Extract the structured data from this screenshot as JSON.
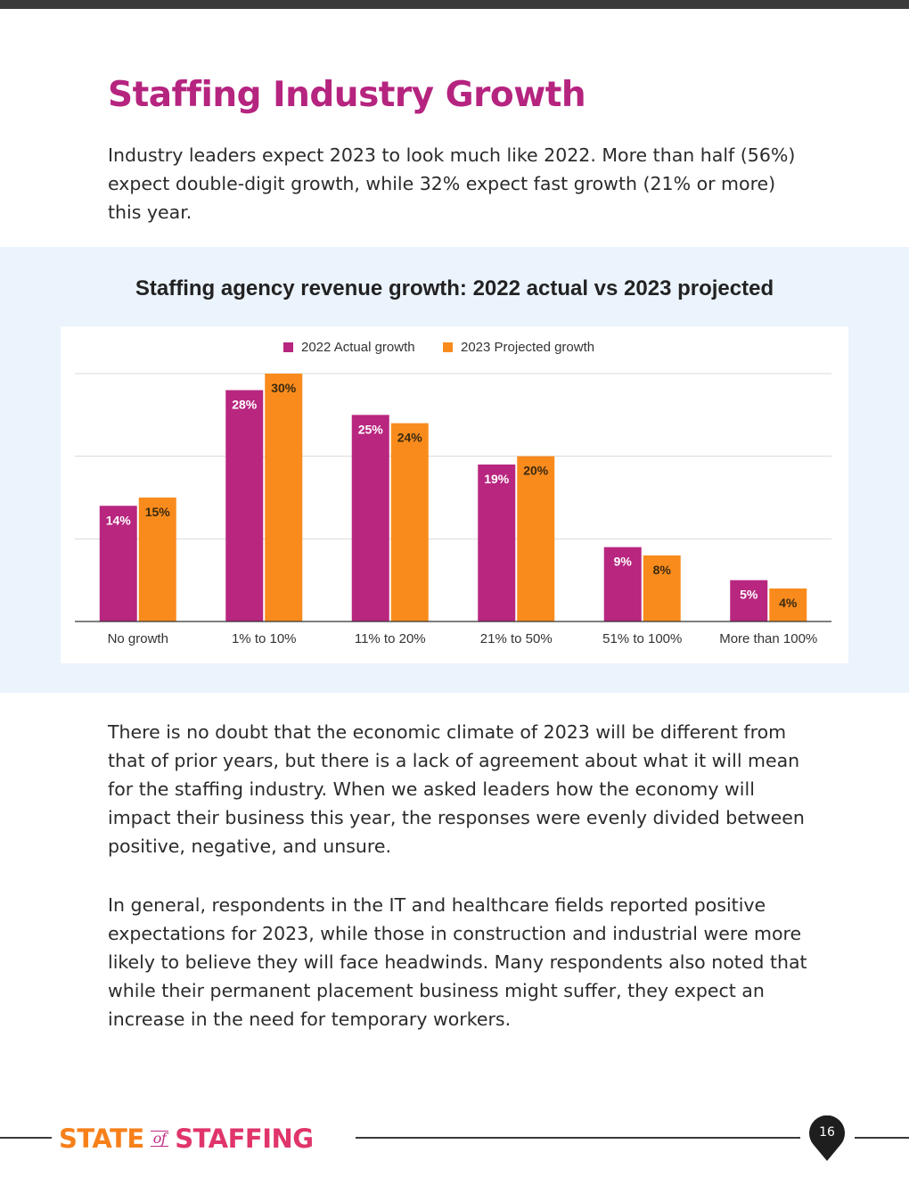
{
  "page": {
    "title": "Staffing Industry Growth",
    "intro": "Industry leaders expect 2023 to look much like 2022. More than half (56%) expect double-digit growth, while 32% expect fast growth (21% or more) this year.",
    "paragraphs": [
      "There is no doubt that the economic climate of 2023 will be different from that of prior years, but there is a lack of agreement about what it will mean for the staffing industry. When we asked leaders how the economy will impact their business this year, the responses were evenly divided between positive, negative, and unsure.",
      "In general, respondents in the IT and healthcare fields reported positive expectations for 2023, while those in construction and industrial were more likely to believe they will face headwinds. Many respondents also noted that while their permanent placement business might suffer, they expect an increase in the need for temporary workers."
    ]
  },
  "chart_data": {
    "type": "bar",
    "title": "Staffing agency revenue growth: 2022 actual vs 2023 projected",
    "categories": [
      "No growth",
      "1% to 10%",
      "11% to 20%",
      "21% to 50%",
      "51% to 100%",
      "More than 100%"
    ],
    "series": [
      {
        "name": "2022 Actual growth",
        "values": [
          14,
          28,
          25,
          19,
          9,
          5
        ],
        "color": "#b8267f"
      },
      {
        "name": "2023 Projected growth",
        "values": [
          15,
          30,
          24,
          20,
          8,
          4
        ],
        "color": "#f98b1d"
      }
    ],
    "ylim": [
      0,
      30
    ],
    "grid": true,
    "legend": "top-center",
    "data_labels": true
  },
  "footer": {
    "brand_part1": "STATE",
    "brand_part2": "of",
    "brand_part3": "STAFFING",
    "page_number": "16"
  },
  "colors": {
    "title": "#b5247f",
    "chart_band": "#ebf3fd",
    "series_2022": "#b8267f",
    "series_2023": "#f98b1d"
  }
}
